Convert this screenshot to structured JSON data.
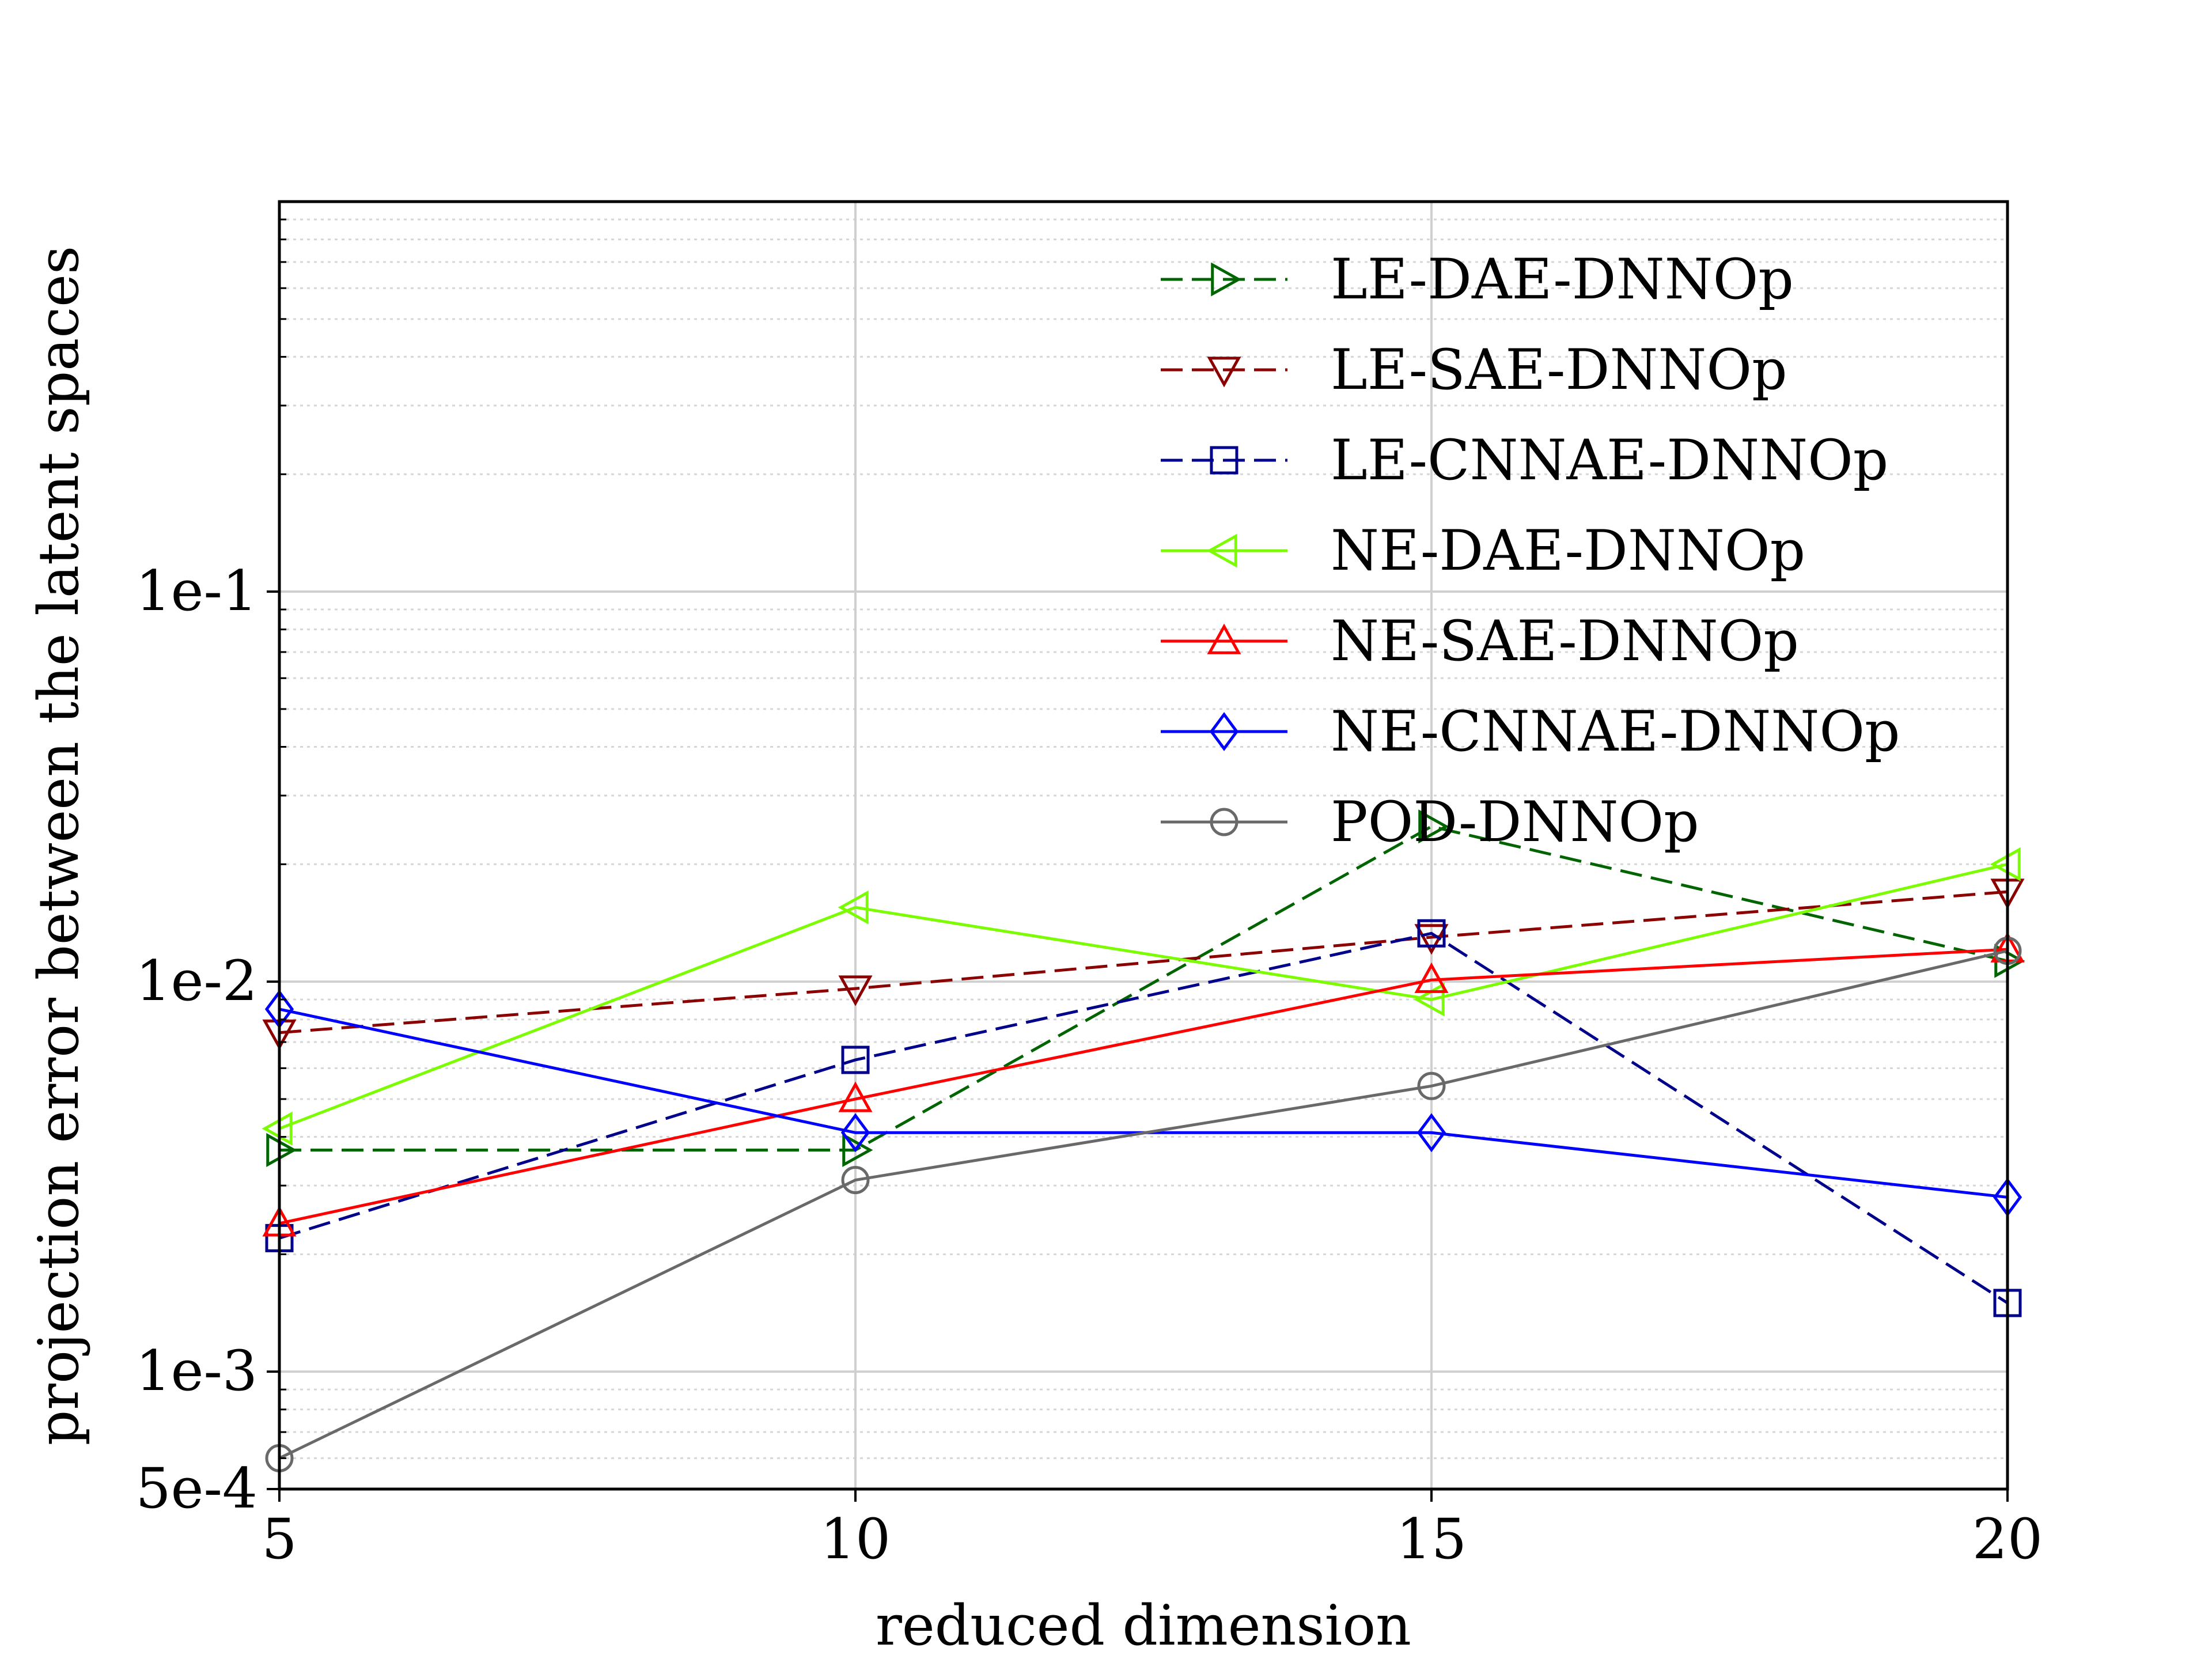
{
  "chart_data": {
    "type": "line",
    "title": "",
    "xlabel": "reduced dimension",
    "ylabel": "projection error between the latent spaces",
    "yscale": "log",
    "xlim": [
      5,
      20
    ],
    "ylim": [
      0.0005,
      1
    ],
    "x": [
      5,
      10,
      15,
      20
    ],
    "x_ticks": [
      {
        "value": 5,
        "label": "5"
      },
      {
        "value": 10,
        "label": "10"
      },
      {
        "value": 15,
        "label": "15"
      },
      {
        "value": 20,
        "label": "20"
      }
    ],
    "y_ticks": [
      {
        "value": 0.0005,
        "label": "5e-4"
      },
      {
        "value": 0.001,
        "label": "1e-3"
      },
      {
        "value": 0.01,
        "label": "1e-2"
      },
      {
        "value": 0.1,
        "label": "1e-1"
      }
    ],
    "grid": true,
    "legend_position": "top-right",
    "series": [
      {
        "name": "LE-DAE-DNNOp",
        "values": [
          0.0037,
          0.0037,
          0.025,
          0.0113
        ],
        "color": "#006400",
        "dash": "dashed",
        "marker": "triangle-right"
      },
      {
        "name": "LE-SAE-DNNOp",
        "values": [
          0.0074,
          0.0096,
          0.013,
          0.017
        ],
        "color": "#8b0000",
        "dash": "dashed",
        "marker": "triangle-down"
      },
      {
        "name": "LE-CNNAE-DNNOp",
        "values": [
          0.0022,
          0.0063,
          0.0133,
          0.0015
        ],
        "color": "#00008b",
        "dash": "dashed",
        "marker": "square"
      },
      {
        "name": "NE-DAE-DNNOp",
        "values": [
          0.0042,
          0.0155,
          0.009,
          0.02
        ],
        "color": "#7cfc00",
        "dash": "solid",
        "marker": "triangle-left"
      },
      {
        "name": "NE-SAE-DNNOp",
        "values": [
          0.0024,
          0.005,
          0.0101,
          0.0121
        ],
        "color": "#ff0000",
        "dash": "solid",
        "marker": "triangle-up"
      },
      {
        "name": "NE-CNNAE-DNNOp",
        "values": [
          0.0085,
          0.0041,
          0.0041,
          0.0028
        ],
        "color": "#0000ff",
        "dash": "solid",
        "marker": "diamond"
      },
      {
        "name": "POD-DNNOp",
        "values": [
          0.0006,
          0.0031,
          0.0054,
          0.012
        ],
        "color": "#696969",
        "dash": "solid",
        "marker": "circle"
      }
    ]
  }
}
